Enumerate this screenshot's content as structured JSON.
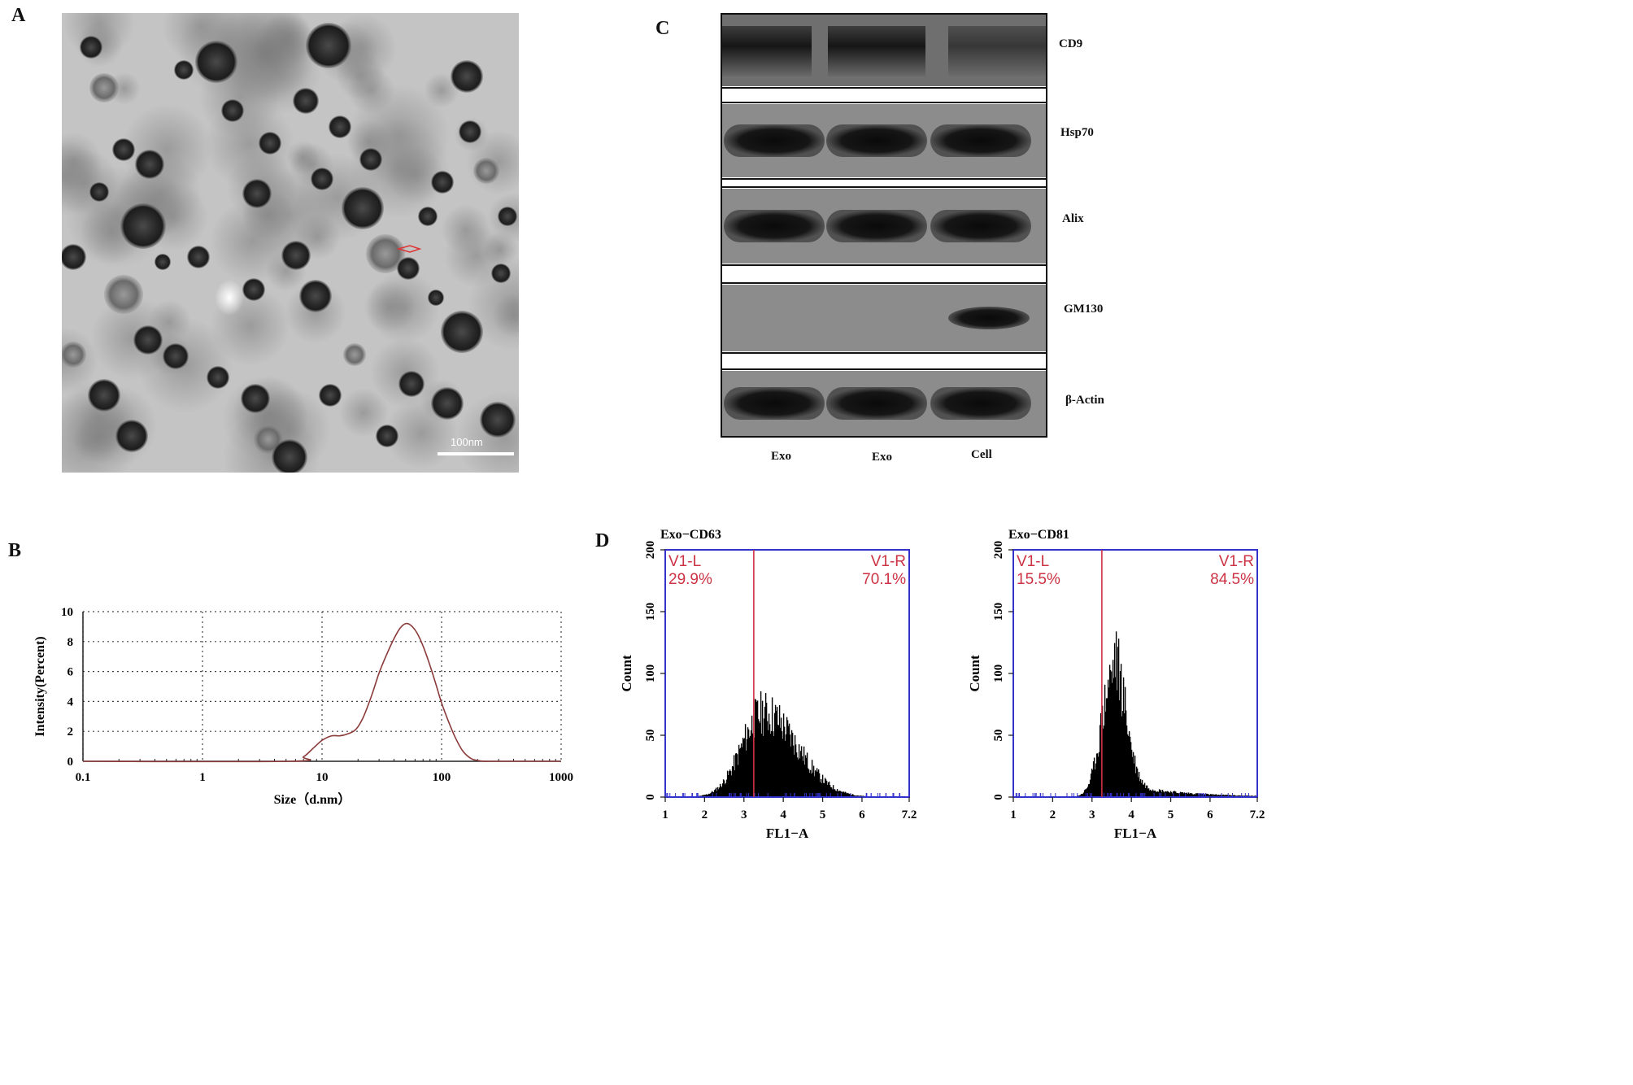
{
  "panels": {
    "a": {
      "letter": "A",
      "scale_bar_label": "100nm"
    },
    "b": {
      "letter": "B"
    },
    "c": {
      "letter": "C"
    },
    "d": {
      "letter": "D"
    }
  },
  "western_blot": {
    "bands": [
      {
        "label": "CD9",
        "pattern": "smear",
        "cell_only": false
      },
      {
        "label": "Hsp70",
        "pattern": "band",
        "cell_only": false
      },
      {
        "label": "Alix",
        "pattern": "band",
        "cell_only": false
      },
      {
        "label": "GM130",
        "pattern": "band",
        "cell_only": true
      },
      {
        "label": "β-Actin",
        "pattern": "band",
        "cell_only": false
      }
    ],
    "lanes": [
      "Exo",
      "Exo",
      "Cell"
    ]
  },
  "chart_data": [
    {
      "type": "line",
      "panel": "B",
      "xlabel": "Size（d.nm）",
      "ylabel": "Intensity(Percent)",
      "x_scale": "log",
      "xlim": [
        0.1,
        1000
      ],
      "ylim": [
        0,
        10
      ],
      "x_ticks": [
        "0.1",
        "1",
        "10",
        "100",
        "1000"
      ],
      "y_ticks": [
        "0",
        "2",
        "4",
        "6",
        "8",
        "10"
      ],
      "grid": true,
      "series_color": "#8b3a3a",
      "x": [
        0.1,
        5.5,
        7,
        8.5,
        10,
        12,
        14,
        16,
        19,
        22,
        26,
        30,
        35,
        40,
        45,
        50,
        55,
        62,
        70,
        80,
        90,
        100,
        115,
        130,
        150,
        175,
        200,
        230,
        260,
        1000
      ],
      "y": [
        0,
        0,
        0.3,
        0.9,
        1.4,
        1.7,
        1.7,
        1.8,
        2.1,
        2.9,
        4.4,
        5.9,
        7.2,
        8.2,
        8.9,
        9.2,
        9.1,
        8.6,
        7.7,
        6.4,
        5.1,
        3.9,
        2.6,
        1.6,
        0.7,
        0.2,
        0.05,
        0,
        0,
        0
      ]
    },
    {
      "type": "histogram",
      "panel": "D",
      "title": "Exo−CD63",
      "xlabel": "FL1−A",
      "ylabel": "Count",
      "xlim": [
        1,
        7.2
      ],
      "ylim": [
        0,
        200
      ],
      "x_ticks": [
        "1",
        "2",
        "3",
        "4",
        "5",
        "6",
        "7.2"
      ],
      "y_ticks": [
        "0",
        "50",
        "100",
        "150",
        "200"
      ],
      "gate": {
        "x": 3.25,
        "left_label": "V1-L",
        "left_value": "29.9%",
        "right_label": "V1-R",
        "right_value": "70.1%"
      },
      "peak": {
        "center": 3.5,
        "height": 68,
        "width_left": 0.55,
        "width_right": 0.85,
        "tail": 0
      },
      "box_color": "#3333cc",
      "gate_color": "#cc3344"
    },
    {
      "type": "histogram",
      "panel": "D",
      "title": "Exo−CD81",
      "xlabel": "FL1−A",
      "ylabel": "Count",
      "xlim": [
        1,
        7.2
      ],
      "ylim": [
        0,
        200
      ],
      "x_ticks": [
        "1",
        "2",
        "3",
        "4",
        "5",
        "6",
        "7.2"
      ],
      "y_ticks": [
        "0",
        "50",
        "100",
        "150",
        "200"
      ],
      "gate": {
        "x": 3.25,
        "left_label": "V1-L",
        "left_value": "15.5%",
        "right_label": "V1-R",
        "right_value": "84.5%"
      },
      "peak": {
        "center": 3.55,
        "height": 100,
        "width_left": 0.3,
        "width_right": 0.3,
        "tail": 12
      },
      "box_color": "#3333cc",
      "gate_color": "#cc3344"
    }
  ]
}
